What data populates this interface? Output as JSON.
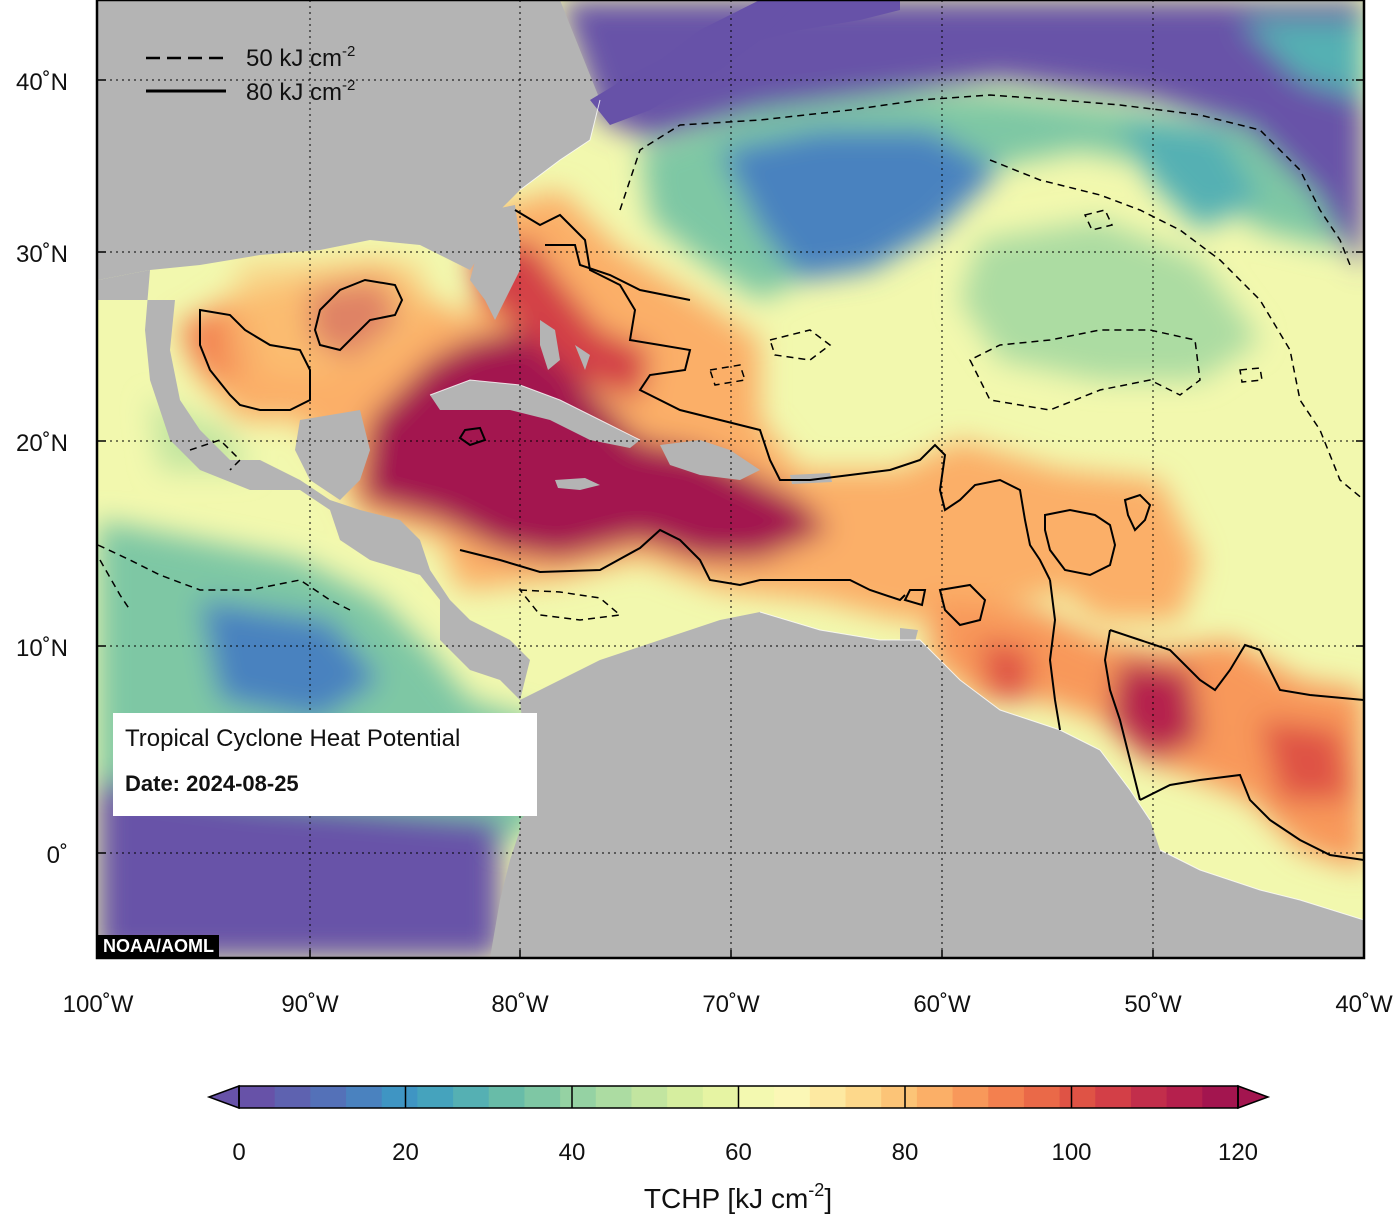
{
  "map": {
    "legend": {
      "dashed_label": "50 kJ cm",
      "dashed_exp": "-2",
      "solid_label": "80 kJ cm",
      "solid_exp": "-2"
    },
    "lat_labels": [
      "40˚N",
      "30˚N",
      "20˚N",
      "10˚N",
      "0˚"
    ],
    "lon_labels": [
      "100˚W",
      "90˚W",
      "80˚W",
      "70˚W",
      "60˚W",
      "50˚W",
      "40˚W"
    ],
    "info": {
      "title": "Tropical Cyclone Heat Potential",
      "date_label": "Date: 2024-08-25"
    },
    "credit": "NOAA/AOML",
    "colors": {
      "land": "#b4b4b4",
      "cold_water": "#6a5aa8",
      "peak": "#a3154f"
    }
  },
  "colorbar": {
    "ticks": [
      "0",
      "20",
      "40",
      "60",
      "80",
      "100",
      "120"
    ],
    "title": "TCHP [kJ cm",
    "title_exp": "-2",
    "title_close": "]",
    "colors": [
      "#6752a8",
      "#5e62b0",
      "#5471b8",
      "#4a82bf",
      "#3f95c3",
      "#45a3bd",
      "#55b0b3",
      "#68bca8",
      "#7ec7a4",
      "#95d2a3",
      "#acdca2",
      "#c2e5a0",
      "#d6ee9f",
      "#e6f4a3",
      "#f3f9b0",
      "#fbf7b6",
      "#fde9a1",
      "#fdd88b",
      "#fcc477",
      "#fbaf67",
      "#f8985a",
      "#f3804f",
      "#ea6948",
      "#df5345",
      "#d33f47",
      "#c22e4b",
      "#b5204d",
      "#a3154f"
    ]
  }
}
